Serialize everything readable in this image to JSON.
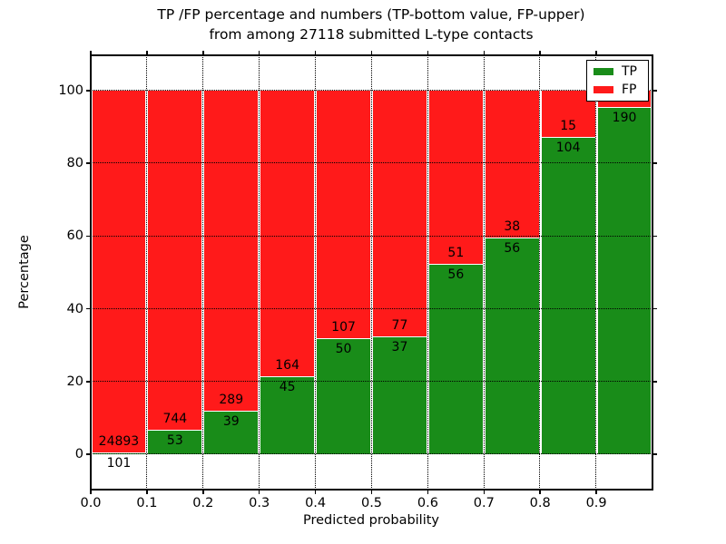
{
  "chart_data": {
    "type": "bar",
    "variant": "stacked_percentage",
    "title_lines": [
      "TP /FP percentage and numbers (TP-bottom value, FP-upper)",
      "from among 27118 submitted L-type contacts"
    ],
    "xlabel": "Predicted probability",
    "ylabel": "Percentage",
    "x_tick_labels": [
      "0.0",
      "0.1",
      "0.2",
      "0.3",
      "0.4",
      "0.5",
      "0.6",
      "0.7",
      "0.8",
      "0.9"
    ],
    "y_ticks": [
      0,
      20,
      40,
      60,
      80,
      100
    ],
    "ylim": [
      -9.7,
      109.7
    ],
    "xlim": [
      0.0,
      1.0
    ],
    "grid": true,
    "legend": {
      "position": "upper right",
      "entries": [
        {
          "label": "TP",
          "color": "#198c19"
        },
        {
          "label": "FP",
          "color": "#ff1a1a"
        }
      ]
    },
    "colors": {
      "tp": "#198c19",
      "fp": "#ff1a1a",
      "grid": "#000000",
      "text": "#000000"
    },
    "bars": [
      {
        "range": "0.0-0.1",
        "tp": 101,
        "fp": 24893,
        "tp_pct": 0.4
      },
      {
        "range": "0.1-0.2",
        "tp": 53,
        "fp": 744,
        "tp_pct": 6.65
      },
      {
        "range": "0.2-0.3",
        "tp": 39,
        "fp": 289,
        "tp_pct": 11.89
      },
      {
        "range": "0.3-0.4",
        "tp": 45,
        "fp": 164,
        "tp_pct": 21.53
      },
      {
        "range": "0.4-0.5",
        "tp": 50,
        "fp": 107,
        "tp_pct": 31.85
      },
      {
        "range": "0.5-0.6",
        "tp": 37,
        "fp": 77,
        "tp_pct": 32.46
      },
      {
        "range": "0.6-0.7",
        "tp": 56,
        "fp": 51,
        "tp_pct": 52.34
      },
      {
        "range": "0.7-0.8",
        "tp": 56,
        "fp": 38,
        "tp_pct": 59.57
      },
      {
        "range": "0.8-0.9",
        "tp": 104,
        "fp": 15,
        "tp_pct": 87.39
      },
      {
        "range": "0.9-1.0",
        "tp": 190,
        "fp": null,
        "tp_pct": 95.48
      }
    ]
  }
}
